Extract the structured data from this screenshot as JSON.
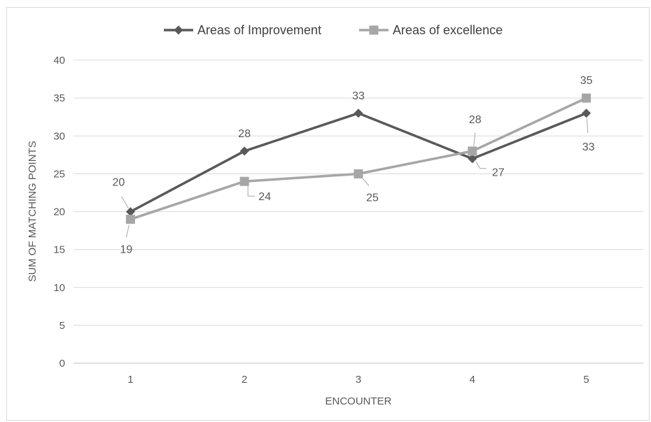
{
  "chart_data": {
    "type": "line",
    "title": "",
    "xlabel": "ENCOUNTER",
    "ylabel": "SUM OF MATCHING POINTS",
    "categories": [
      "1",
      "2",
      "3",
      "4",
      "5"
    ],
    "ylim": [
      0,
      40
    ],
    "yticks": [
      "0",
      "5",
      "10",
      "15",
      "20",
      "25",
      "30",
      "35",
      "40"
    ],
    "grid": true,
    "legend_position": "top",
    "series": [
      {
        "name": "Areas of Improvement",
        "values": [
          20,
          28,
          33,
          27,
          33
        ],
        "labels": [
          "20",
          "28",
          "33",
          "27",
          "33"
        ],
        "color": "#595959",
        "marker": "diamond"
      },
      {
        "name": "Areas of excellence",
        "values": [
          19,
          24,
          25,
          28,
          35
        ],
        "labels": [
          "19",
          "24",
          "25",
          "28",
          "35"
        ],
        "color": "#a6a6a6",
        "marker": "square"
      }
    ]
  }
}
